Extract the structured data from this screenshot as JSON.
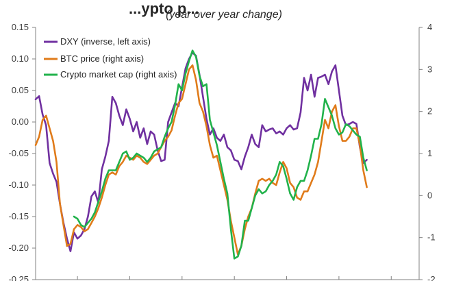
{
  "chart_data": {
    "type": "line",
    "title": "...ypto p...",
    "subtitle": "(year over year change)",
    "y_left": {
      "ylim": [
        -0.25,
        0.15
      ],
      "ticks": [
        "0.15",
        "0.10",
        "0.05",
        "0.00",
        "-0.05",
        "-0.10",
        "-0.15",
        "-0.20",
        "-0.25"
      ],
      "tick_values": [
        0.15,
        0.1,
        0.05,
        0.0,
        -0.05,
        -0.1,
        -0.15,
        -0.2,
        -0.25
      ]
    },
    "y_right": {
      "ylim": [
        -2,
        4
      ],
      "ticks": [
        "4",
        "3",
        "2",
        "1",
        "0",
        "-1",
        "-2"
      ],
      "tick_values": [
        4,
        3,
        2,
        1,
        0,
        -1,
        -2
      ]
    },
    "x": {
      "xlim": [
        0,
        110
      ],
      "tick_positions": [
        12,
        27,
        42,
        57,
        72,
        87,
        102
      ]
    },
    "legend": {
      "placement": "top-left"
    },
    "series": [
      {
        "name": "DXY (inverse, left axis)",
        "axis": "left",
        "color": "#7030A0",
        "points": [
          [
            0,
            0.036
          ],
          [
            1,
            0.041
          ],
          [
            2,
            0.012
          ],
          [
            3,
            -0.005
          ],
          [
            4,
            -0.065
          ],
          [
            5,
            -0.082
          ],
          [
            6,
            -0.095
          ],
          [
            7,
            -0.13
          ],
          [
            8,
            -0.16
          ],
          [
            9,
            -0.185
          ],
          [
            10,
            -0.205
          ],
          [
            11,
            -0.175
          ],
          [
            12,
            -0.185
          ],
          [
            13,
            -0.18
          ],
          [
            14,
            -0.17
          ],
          [
            15,
            -0.15
          ],
          [
            16,
            -0.118
          ],
          [
            17,
            -0.11
          ],
          [
            18,
            -0.128
          ],
          [
            19,
            -0.075
          ],
          [
            20,
            -0.055
          ],
          [
            21,
            -0.03
          ],
          [
            22,
            0.04
          ],
          [
            23,
            0.03
          ],
          [
            24,
            0.01
          ],
          [
            25,
            -0.005
          ],
          [
            26,
            0.02
          ],
          [
            27,
            0.005
          ],
          [
            28,
            -0.015
          ],
          [
            29,
            0.0
          ],
          [
            30,
            -0.025
          ],
          [
            31,
            -0.01
          ],
          [
            32,
            -0.035
          ],
          [
            33,
            -0.015
          ],
          [
            34,
            -0.02
          ],
          [
            35,
            -0.045
          ],
          [
            36,
            -0.062
          ],
          [
            37,
            -0.06
          ],
          [
            38,
            0.0
          ],
          [
            39,
            0.015
          ],
          [
            40,
            0.03
          ],
          [
            41,
            0.025
          ],
          [
            42,
            0.055
          ],
          [
            43,
            0.085
          ],
          [
            44,
            0.1
          ],
          [
            45,
            0.11
          ],
          [
            46,
            0.105
          ],
          [
            47,
            0.075
          ],
          [
            48,
            0.04
          ],
          [
            49,
            0.005
          ],
          [
            50,
            -0.02
          ],
          [
            51,
            -0.01
          ],
          [
            52,
            -0.025
          ],
          [
            53,
            -0.03
          ],
          [
            54,
            -0.02
          ],
          [
            55,
            -0.04
          ],
          [
            56,
            -0.045
          ],
          [
            57,
            -0.06
          ],
          [
            58,
            -0.062
          ],
          [
            59,
            -0.075
          ],
          [
            60,
            -0.055
          ],
          [
            61,
            -0.04
          ],
          [
            62,
            -0.02
          ],
          [
            63,
            -0.035
          ],
          [
            64,
            -0.04
          ],
          [
            65,
            -0.005
          ],
          [
            66,
            -0.015
          ],
          [
            67,
            -0.012
          ],
          [
            68,
            -0.01
          ],
          [
            69,
            -0.018
          ],
          [
            70,
            -0.015
          ],
          [
            71,
            -0.02
          ],
          [
            72,
            -0.01
          ],
          [
            73,
            -0.005
          ],
          [
            74,
            -0.012
          ],
          [
            75,
            -0.01
          ],
          [
            76,
            0.015
          ],
          [
            77,
            0.07
          ],
          [
            78,
            0.05
          ],
          [
            79,
            0.075
          ],
          [
            80,
            0.04
          ],
          [
            81,
            0.07
          ],
          [
            82,
            0.072
          ],
          [
            83,
            0.075
          ],
          [
            84,
            0.06
          ],
          [
            85,
            0.08
          ],
          [
            86,
            0.09
          ],
          [
            87,
            0.05
          ],
          [
            88,
            0.01
          ],
          [
            89,
            -0.005
          ],
          [
            90,
            -0.003
          ],
          [
            91,
            0.0
          ],
          [
            92,
            -0.003
          ],
          [
            93,
            -0.04
          ],
          [
            94,
            -0.065
          ],
          [
            95,
            -0.06
          ]
        ]
      },
      {
        "name": "BTC price (right axis)",
        "axis": "right",
        "color": "#E07B1A",
        "points": [
          [
            0,
            1.2
          ],
          [
            1,
            1.4
          ],
          [
            2,
            1.8
          ],
          [
            3,
            1.9
          ],
          [
            4,
            1.6
          ],
          [
            5,
            1.3
          ],
          [
            6,
            0.8
          ],
          [
            7,
            -0.2
          ],
          [
            8,
            -0.7
          ],
          [
            9,
            -1.2
          ],
          [
            10,
            -1.15
          ],
          [
            11,
            -0.8
          ],
          [
            12,
            -0.7
          ],
          [
            13,
            -0.75
          ],
          [
            14,
            -0.85
          ],
          [
            15,
            -0.8
          ],
          [
            16,
            -0.65
          ],
          [
            17,
            -0.5
          ],
          [
            18,
            -0.3
          ],
          [
            19,
            -0.05
          ],
          [
            20,
            0.25
          ],
          [
            21,
            0.5
          ],
          [
            22,
            0.55
          ],
          [
            23,
            0.5
          ],
          [
            24,
            0.7
          ],
          [
            25,
            0.8
          ],
          [
            26,
            0.95
          ],
          [
            27,
            0.9
          ],
          [
            28,
            0.85
          ],
          [
            29,
            0.95
          ],
          [
            30,
            0.9
          ],
          [
            31,
            0.8
          ],
          [
            32,
            0.75
          ],
          [
            33,
            0.85
          ],
          [
            34,
            0.95
          ],
          [
            35,
            1.0
          ],
          [
            36,
            1.15
          ],
          [
            37,
            1.3
          ],
          [
            38,
            1.4
          ],
          [
            39,
            1.55
          ],
          [
            40,
            1.9
          ],
          [
            41,
            2.2
          ],
          [
            42,
            2.3
          ],
          [
            43,
            2.65
          ],
          [
            44,
            3.0
          ],
          [
            45,
            3.1
          ],
          [
            46,
            2.75
          ],
          [
            47,
            2.2
          ],
          [
            48,
            2.0
          ],
          [
            49,
            1.65
          ],
          [
            50,
            1.2
          ],
          [
            51,
            0.9
          ],
          [
            52,
            0.95
          ],
          [
            53,
            0.6
          ],
          [
            54,
            0.25
          ],
          [
            55,
            -0.1
          ],
          [
            56,
            -0.6
          ],
          [
            57,
            -1.0
          ],
          [
            58,
            -1.4
          ],
          [
            59,
            -1.2
          ],
          [
            60,
            -0.8
          ],
          [
            61,
            -0.5
          ],
          [
            62,
            -0.3
          ],
          [
            63,
            0.05
          ],
          [
            64,
            0.35
          ],
          [
            65,
            0.4
          ],
          [
            66,
            0.35
          ],
          [
            67,
            0.4
          ],
          [
            68,
            0.3
          ],
          [
            69,
            0.25
          ],
          [
            70,
            0.55
          ],
          [
            71,
            0.8
          ],
          [
            72,
            0.65
          ],
          [
            73,
            0.3
          ],
          [
            74,
            0.2
          ],
          [
            75,
            -0.05
          ],
          [
            76,
            -0.1
          ],
          [
            77,
            0.1
          ],
          [
            78,
            0.1
          ],
          [
            79,
            0.3
          ],
          [
            80,
            0.5
          ],
          [
            81,
            0.8
          ],
          [
            82,
            1.3
          ],
          [
            83,
            1.8
          ],
          [
            84,
            1.6
          ],
          [
            85,
            2.0
          ],
          [
            86,
            2.15
          ],
          [
            87,
            1.65
          ],
          [
            88,
            1.3
          ],
          [
            89,
            1.3
          ],
          [
            90,
            1.4
          ],
          [
            91,
            1.6
          ],
          [
            92,
            1.6
          ],
          [
            93,
            1.2
          ],
          [
            94,
            0.6
          ],
          [
            95,
            0.2
          ]
        ]
      },
      {
        "name": "Crypto market cap (right axis)",
        "axis": "right",
        "color": "#21B24B",
        "points": [
          [
            11,
            -0.5
          ],
          [
            12,
            -0.55
          ],
          [
            13,
            -0.7
          ],
          [
            14,
            -0.75
          ],
          [
            15,
            -0.65
          ],
          [
            16,
            -0.55
          ],
          [
            17,
            -0.4
          ],
          [
            18,
            -0.15
          ],
          [
            19,
            0.1
          ],
          [
            20,
            0.4
          ],
          [
            21,
            0.6
          ],
          [
            22,
            0.6
          ],
          [
            23,
            0.6
          ],
          [
            24,
            0.8
          ],
          [
            25,
            1.0
          ],
          [
            26,
            1.05
          ],
          [
            27,
            0.85
          ],
          [
            28,
            0.9
          ],
          [
            29,
            1.0
          ],
          [
            30,
            0.95
          ],
          [
            31,
            0.9
          ],
          [
            32,
            0.8
          ],
          [
            33,
            0.9
          ],
          [
            34,
            1.05
          ],
          [
            35,
            1.1
          ],
          [
            36,
            1.15
          ],
          [
            37,
            1.4
          ],
          [
            38,
            1.6
          ],
          [
            39,
            1.75
          ],
          [
            40,
            2.15
          ],
          [
            41,
            2.65
          ],
          [
            42,
            2.5
          ],
          [
            43,
            2.9
          ],
          [
            44,
            3.2
          ],
          [
            45,
            3.45
          ],
          [
            46,
            3.3
          ],
          [
            47,
            2.85
          ],
          [
            48,
            2.6
          ],
          [
            49,
            2.65
          ],
          [
            50,
            1.8
          ],
          [
            51,
            1.5
          ],
          [
            52,
            1.2
          ],
          [
            53,
            0.8
          ],
          [
            54,
            0.4
          ],
          [
            55,
            0.05
          ],
          [
            56,
            -0.8
          ],
          [
            57,
            -1.5
          ],
          [
            58,
            -1.45
          ],
          [
            59,
            -1.2
          ],
          [
            60,
            -0.6
          ],
          [
            61,
            -0.6
          ],
          [
            62,
            -0.3
          ],
          [
            63,
            0.0
          ],
          [
            64,
            0.15
          ],
          [
            65,
            0.05
          ],
          [
            66,
            0.1
          ],
          [
            67,
            0.25
          ],
          [
            68,
            0.35
          ],
          [
            69,
            0.5
          ],
          [
            70,
            0.8
          ],
          [
            71,
            0.7
          ],
          [
            72,
            0.4
          ],
          [
            73,
            0.05
          ],
          [
            74,
            -0.1
          ],
          [
            75,
            0.2
          ],
          [
            76,
            0.35
          ],
          [
            77,
            0.35
          ],
          [
            78,
            0.6
          ],
          [
            79,
            0.95
          ],
          [
            80,
            1.35
          ],
          [
            81,
            1.35
          ],
          [
            82,
            1.7
          ],
          [
            83,
            2.3
          ],
          [
            84,
            2.1
          ],
          [
            85,
            1.9
          ],
          [
            86,
            1.6
          ],
          [
            87,
            1.45
          ],
          [
            88,
            1.5
          ],
          [
            89,
            1.7
          ],
          [
            90,
            1.65
          ],
          [
            91,
            1.55
          ],
          [
            92,
            1.45
          ],
          [
            93,
            1.4
          ],
          [
            94,
            0.9
          ],
          [
            95,
            0.6
          ]
        ]
      }
    ]
  }
}
